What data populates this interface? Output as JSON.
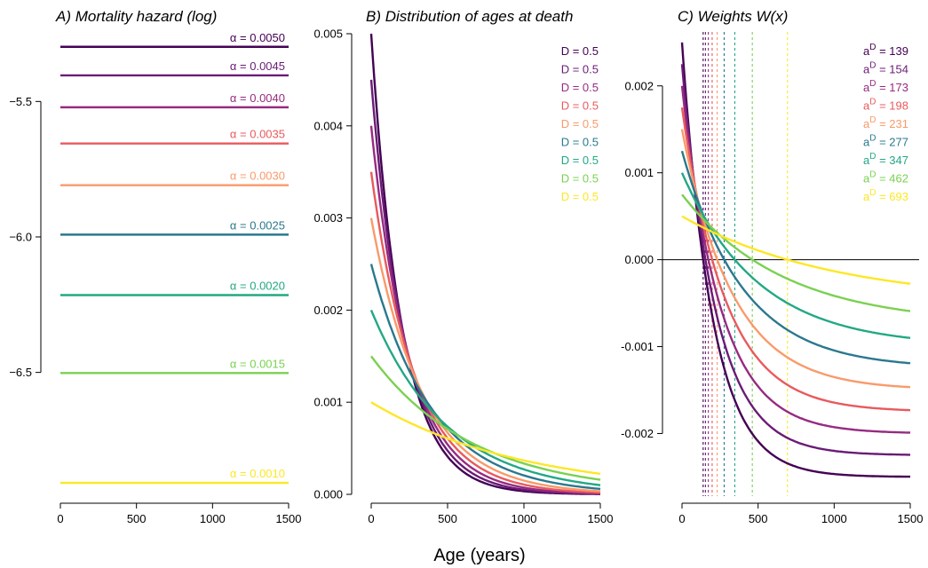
{
  "shared_xlabel": "Age (years)",
  "colors": [
    "#440154",
    "#6a1b76",
    "#962b80",
    "#c83e73",
    "#e85a5d",
    "#f99a6a",
    "#2a788e",
    "#22a884",
    "#7ad151",
    "#fde725"
  ],
  "chart_data": [
    {
      "type": "line",
      "title": "A) Mortality hazard (log)",
      "x": [
        0,
        1500
      ],
      "xlim": [
        0,
        1500
      ],
      "xticks": [
        0,
        500,
        1000,
        1500
      ],
      "ylim": [
        -6.95,
        -5.25
      ],
      "yticks": [
        -5.5,
        -6.0,
        -6.5
      ],
      "ytick_labels": [
        "−5.5",
        "−6.0",
        "−6.5"
      ],
      "series": [
        {
          "name": "α = 0.0050",
          "alpha": 0.005,
          "color": "#440154"
        },
        {
          "name": "α = 0.0045",
          "alpha": 0.0045,
          "color": "#6a1b76"
        },
        {
          "name": "α = 0.0040",
          "alpha": 0.004,
          "color": "#962b80"
        },
        {
          "name": "α = 0.0035",
          "alpha": 0.0035,
          "color": "#e85a5d"
        },
        {
          "name": "α = 0.0030",
          "alpha": 0.003,
          "color": "#f99a6a"
        },
        {
          "name": "α = 0.0025",
          "alpha": 0.0025,
          "color": "#2a788e"
        },
        {
          "name": "α = 0.0020",
          "alpha": 0.002,
          "color": "#22a884"
        },
        {
          "name": "α = 0.0015",
          "alpha": 0.0015,
          "color": "#7ad151"
        },
        {
          "name": "α = 0.0010",
          "alpha": 0.001,
          "color": "#fde725"
        }
      ]
    },
    {
      "type": "line",
      "title": "B) Distribution of ages at death",
      "xlim": [
        0,
        1500
      ],
      "xticks": [
        0,
        500,
        1000,
        1500
      ],
      "ylim": [
        0,
        0.005
      ],
      "yticks": [
        0.0,
        0.001,
        0.002,
        0.003,
        0.004,
        0.005
      ],
      "ytick_labels": [
        "0.000",
        "0.001",
        "0.002",
        "0.003",
        "0.004",
        "0.005"
      ],
      "legend": [
        "D = 0.5",
        "D = 0.5",
        "D = 0.5",
        "D = 0.5",
        "D = 0.5",
        "D = 0.5",
        "D = 0.5",
        "D = 0.5",
        "D = 0.5"
      ],
      "legend_position": "top-right",
      "series_alphas": [
        0.005,
        0.0045,
        0.004,
        0.0035,
        0.003,
        0.0025,
        0.002,
        0.0015,
        0.001
      ],
      "function": "alpha * exp(-alpha * x)"
    },
    {
      "type": "line",
      "title": "C) Weights W(x)",
      "xlim": [
        0,
        1500
      ],
      "xticks": [
        0,
        500,
        1000,
        1500
      ],
      "ylim": [
        -0.0027,
        0.0026
      ],
      "yticks": [
        0.002,
        0.001,
        0.0,
        -0.001,
        -0.002
      ],
      "ytick_labels": [
        "0.002",
        "0.001",
        "0.000",
        "-0.001",
        "-0.002"
      ],
      "zero_line": true,
      "legend_prefix": "a",
      "legend_superscript": "D",
      "legend_values": [
        "139",
        "154",
        "173",
        "198",
        "231",
        "277",
        "347",
        "462",
        "693"
      ],
      "legend_position": "top-right",
      "vlines": [
        139,
        154,
        173,
        198,
        231,
        277,
        347,
        462,
        693
      ],
      "series_alphas": [
        0.005,
        0.0045,
        0.004,
        0.0035,
        0.003,
        0.0025,
        0.002,
        0.0015,
        0.001
      ],
      "function": "alpha * (exp(-alpha * x) - 0.5)"
    }
  ]
}
